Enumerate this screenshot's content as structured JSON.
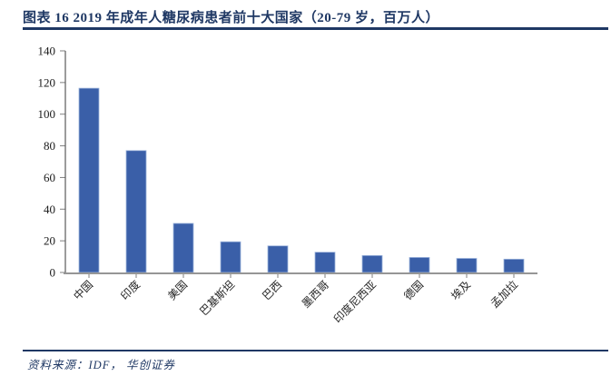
{
  "header": {
    "figure_label": "图表 16",
    "title": "图表 16  2019 年成年人糖尿病患者前十大国家（20-79 岁，百万人）"
  },
  "footer": {
    "source": "资料来源：IDF， 华创证券"
  },
  "colors": {
    "accent_navy": "#1F3864",
    "bar_fill": "#3A5FA8",
    "bar_stroke": "#9FB6DD",
    "y_axis_line": "#595959",
    "x_axis_line": "#969696",
    "tick_mark": "#7F7F7F"
  },
  "chart_data": {
    "type": "bar",
    "title": "2019 年成年人糖尿病患者前十大国家（20-79 岁，百万人）",
    "categories": [
      "中国",
      "印度",
      "美国",
      "巴基斯坦",
      "巴西",
      "墨西哥",
      "印度尼西亚",
      "德国",
      "埃及",
      "孟加拉"
    ],
    "values": [
      116.4,
      77.0,
      31.0,
      19.4,
      16.8,
      12.8,
      10.7,
      9.5,
      8.9,
      8.4
    ],
    "xlabel": "",
    "ylabel": "",
    "ylim": [
      0,
      140
    ],
    "yticks": [
      0,
      20,
      40,
      60,
      80,
      100,
      120,
      140
    ],
    "grid": false,
    "legend": false,
    "x_label_rotation_deg": 45
  }
}
